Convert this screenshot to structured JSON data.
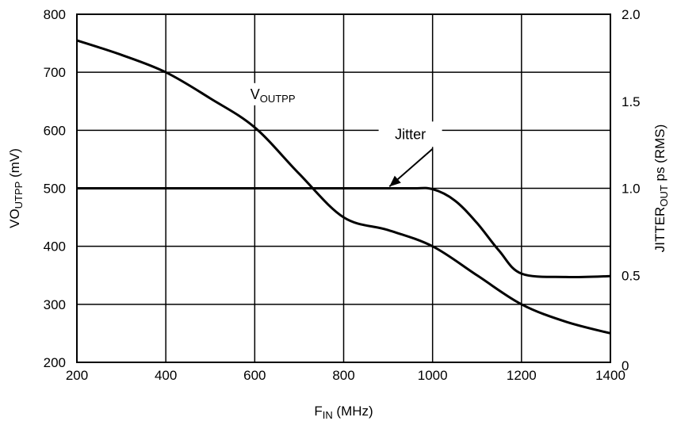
{
  "chart_data": {
    "type": "line",
    "title": "",
    "xlabel": {
      "main": "F",
      "sub": "IN",
      "rest": " (MHz)"
    },
    "ylabel_left": {
      "main": "VO",
      "sub": "UTPP",
      "rest": " (mV)"
    },
    "ylabel_right": {
      "main": "JITTER",
      "sub": "OUT",
      "rest": " ps (RMS)"
    },
    "xlim": [
      200,
      1400
    ],
    "ylim_left": [
      200,
      800
    ],
    "ylim_right": [
      0,
      2.0
    ],
    "x_ticks": [
      "200",
      "400",
      "600",
      "800",
      "1000",
      "1200",
      "1400"
    ],
    "y_left_ticks": [
      "200",
      "300",
      "400",
      "500",
      "600",
      "700",
      "800"
    ],
    "y_right_ticks": [
      "0",
      "0.5",
      "1.0",
      "1.5",
      "2.0"
    ],
    "grid": true,
    "series": [
      {
        "name": "VOUTPP",
        "axis": "left",
        "x": [
          200,
          300,
          400,
          500,
          600,
          700,
          800,
          900,
          1000,
          1100,
          1200,
          1300,
          1400
        ],
        "y": [
          755,
          730,
          700,
          655,
          605,
          525,
          450,
          428,
          400,
          350,
          300,
          270,
          250
        ]
      },
      {
        "name": "Jitter",
        "axis": "right",
        "x": [
          200,
          400,
          600,
          800,
          950,
          1000,
          1050,
          1100,
          1150,
          1200,
          1300,
          1400
        ],
        "y": [
          1.0,
          1.0,
          1.0,
          1.0,
          1.0,
          0.995,
          0.93,
          0.8,
          0.64,
          0.51,
          0.49,
          0.495
        ]
      }
    ],
    "annotations": {
      "voutpp": {
        "main": "V",
        "sub": "OUTPP"
      },
      "jitter": "Jitter"
    }
  }
}
